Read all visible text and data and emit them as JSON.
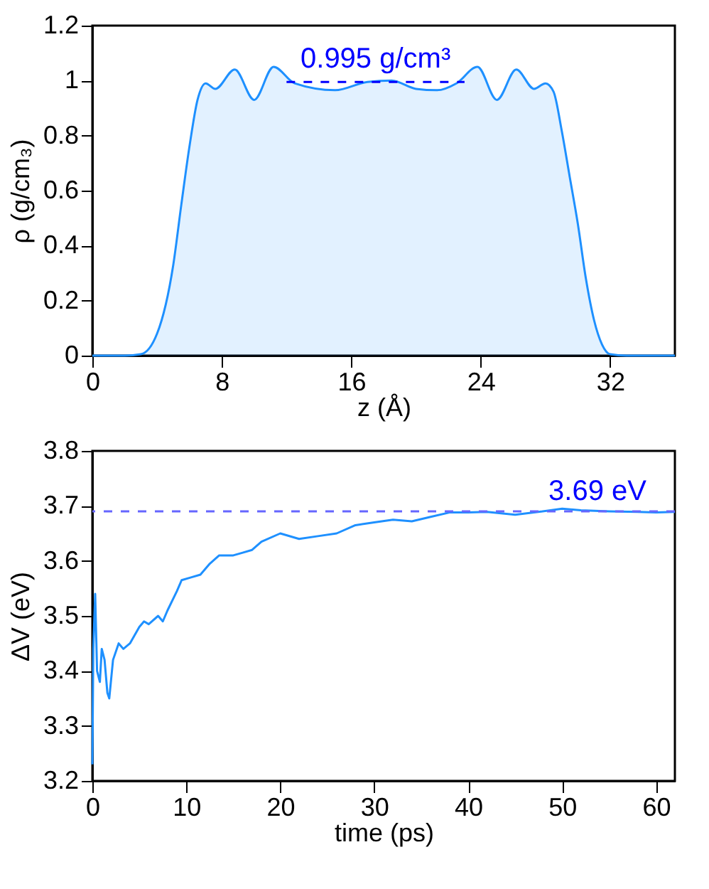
{
  "chart_data": [
    {
      "type": "area",
      "xlabel": "z (Å)",
      "ylabel": "ρ (g/cm₃)",
      "xlim": [
        0,
        36
      ],
      "ylim": [
        0,
        1.2
      ],
      "xticks": [
        0,
        8,
        16,
        24,
        32
      ],
      "yticks": [
        0,
        0.2,
        0.4,
        0.6,
        0.8,
        1,
        1.2
      ],
      "grid": false,
      "series": [
        {
          "color": "#1e90ff",
          "x": [
            0,
            2,
            3,
            4,
            5,
            5.5,
            6,
            6.5,
            7,
            7.6,
            8.8,
            10,
            11.2,
            12.5,
            15,
            17,
            18.5,
            20,
            21.3,
            22.5,
            23.8,
            25,
            26.2,
            27.3,
            28,
            28.5,
            29,
            29.5,
            30,
            30.5,
            31,
            31.5,
            32,
            33,
            36
          ],
          "values": [
            0,
            0,
            0.005,
            0.08,
            0.33,
            0.55,
            0.76,
            0.93,
            0.99,
            0.97,
            1.04,
            0.93,
            1.05,
            0.99,
            0.965,
            0.995,
            1.0,
            0.97,
            0.965,
            0.99,
            1.05,
            0.93,
            1.04,
            0.97,
            0.99,
            0.96,
            0.82,
            0.65,
            0.48,
            0.28,
            0.13,
            0.04,
            0.005,
            0,
            0
          ]
        },
        {
          "type": "line",
          "line_style": "dashed",
          "color": "#0000ff",
          "x": [
            12,
            14,
            16,
            18,
            20,
            22,
            23
          ],
          "values": [
            0.995,
            0.995,
            0.995,
            0.995,
            0.995,
            0.995,
            0.995
          ]
        }
      ],
      "annotations": [
        {
          "text": "0.995 g/cm³",
          "x": 17.5,
          "y": 0.995
        }
      ]
    },
    {
      "type": "line",
      "xlabel": "time (ps)",
      "ylabel": "ΔV (eV)",
      "xlim": [
        0,
        62
      ],
      "ylim": [
        3.2,
        3.8
      ],
      "xticks": [
        0,
        10,
        20,
        30,
        40,
        50,
        60
      ],
      "yticks": [
        3.2,
        3.3,
        3.4,
        3.5,
        3.6,
        3.7,
        3.8
      ],
      "grid": false,
      "series": [
        {
          "color": "#1e90ff",
          "x": [
            0,
            0.1,
            0.3,
            0.5,
            0.8,
            1.0,
            1.3,
            1.6,
            1.8,
            2.2,
            2.8,
            3.3,
            4,
            5,
            5.5,
            6,
            7,
            7.5,
            8,
            9,
            9.5,
            10.5,
            11.5,
            12.5,
            13.5,
            15,
            16,
            17,
            18,
            20,
            22,
            24,
            26,
            28,
            30,
            32,
            34,
            36,
            38,
            40,
            42,
            45,
            47,
            50,
            52,
            55,
            58,
            60,
            62
          ],
          "values": [
            3.23,
            3.44,
            3.54,
            3.4,
            3.38,
            3.44,
            3.42,
            3.36,
            3.35,
            3.42,
            3.45,
            3.44,
            3.45,
            3.48,
            3.49,
            3.485,
            3.5,
            3.49,
            3.51,
            3.545,
            3.565,
            3.57,
            3.575,
            3.595,
            3.61,
            3.61,
            3.615,
            3.62,
            3.635,
            3.65,
            3.64,
            3.645,
            3.65,
            3.665,
            3.67,
            3.675,
            3.672,
            3.68,
            3.688,
            3.688,
            3.689,
            3.684,
            3.688,
            3.695,
            3.692,
            3.69,
            3.689,
            3.688,
            3.689
          ]
        }
      ],
      "ref_lines": [
        {
          "axis": "y",
          "value": 3.69,
          "label": "3.69 eV",
          "color": "#6666ff",
          "line_style": "dashed"
        }
      ]
    }
  ]
}
